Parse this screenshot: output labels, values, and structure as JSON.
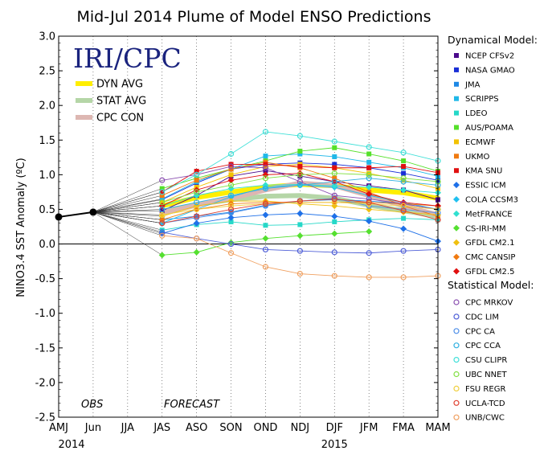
{
  "chart_data": {
    "type": "line",
    "title": "Mid-Jul 2014 Plume of Model ENSO Predictions",
    "logo": "IRI/CPC",
    "ylabel": "NINO3.4 SST Anomaly (ºC)",
    "ylim": [
      -2.5,
      3.0
    ],
    "yticks": [
      "3.0",
      "2.5",
      "2.0",
      "1.5",
      "1.0",
      "0.5",
      "0.0",
      "-0.5",
      "-1.0",
      "-1.5",
      "-2.0",
      "-2.5"
    ],
    "categories": [
      "AMJ",
      "Jun",
      "JJA",
      "JAS",
      "ASO",
      "SON",
      "OND",
      "NDJ",
      "DJF",
      "JFM",
      "FMA",
      "MAM"
    ],
    "year_labels": [
      "2014",
      "2015"
    ],
    "obs_label": "OBS",
    "forecast_label": "FORECAST",
    "observed": {
      "x": [
        "AMJ",
        "Jun"
      ],
      "values": [
        0.39,
        0.46
      ],
      "color": "#000000"
    },
    "legend_dynamical_header": "Dynamical Model:",
    "legend_statistical_header": "Statistical Model:",
    "averages": [
      {
        "name": "DYN AVG",
        "color": "#ffee00",
        "values": [
          0.55,
          0.67,
          0.75,
          0.82,
          0.86,
          0.84,
          0.78,
          0.74,
          0.66
        ]
      },
      {
        "name": "STAT AVG",
        "color": "#b5d6a7",
        "values": [
          0.47,
          0.57,
          0.64,
          0.69,
          0.7,
          0.66,
          0.56,
          0.48,
          0.4
        ]
      },
      {
        "name": "CPC CON",
        "color": "#ddb7b2",
        "values": [
          0.45,
          0.56,
          0.66,
          0.78,
          0.88,
          0.84,
          0.7,
          0.55,
          0.42
        ]
      }
    ],
    "dynamical": [
      {
        "name": "NCEP CFSv2",
        "color": "#4b0a8c",
        "marker": "square",
        "values": [
          0.48,
          0.7,
          0.98,
          1.06,
          0.98,
          0.9,
          0.84,
          0.78,
          0.64
        ]
      },
      {
        "name": "NASA GMAO",
        "color": "#1a2fd6",
        "marker": "square",
        "values": [
          0.64,
          0.88,
          1.08,
          1.15,
          1.17,
          1.15,
          1.1,
          1.02,
          0.92
        ]
      },
      {
        "name": "JMA",
        "color": "#1e88e5",
        "marker": "square",
        "values": [
          0.35,
          0.4,
          0.46,
          0.56,
          0.62,
          0.64,
          0.62,
          0.58,
          0.5
        ]
      },
      {
        "name": "SCRIPPS",
        "color": "#20b8e8",
        "marker": "square",
        "values": [
          0.65,
          0.9,
          1.08,
          1.27,
          1.3,
          1.26,
          1.18,
          1.1,
          0.98
        ]
      },
      {
        "name": "LDEO",
        "color": "#26d8c8",
        "marker": "square",
        "values": [
          0.2,
          0.28,
          0.32,
          0.27,
          0.28,
          0.32,
          0.35,
          0.37,
          0.35
        ]
      },
      {
        "name": "AUS/POAMA",
        "color": "#55e02a",
        "marker": "square",
        "values": [
          0.8,
          0.95,
          1.08,
          1.2,
          1.34,
          1.39,
          1.3,
          1.2,
          1.05
        ]
      },
      {
        "name": "ECMWF",
        "color": "#f2c200",
        "marker": "square",
        "values": [
          0.6,
          0.82,
          1.0,
          1.12,
          1.15,
          1.1,
          1.02,
          0.92,
          0.8
        ]
      },
      {
        "name": "UKMO",
        "color": "#f07a10",
        "marker": "square",
        "values": [
          0.7,
          0.92,
          1.08,
          1.18,
          1.1,
          0.95,
          0.75,
          0.55,
          0.4
        ]
      },
      {
        "name": "KMA SNU",
        "color": "#e01010",
        "marker": "square",
        "values": [
          0.75,
          1.05,
          1.15,
          1.15,
          1.12,
          1.1,
          1.1,
          1.12,
          1.03
        ]
      },
      {
        "name": "ESSIC ICM",
        "color": "#1e70e8",
        "marker": "diamond",
        "values": [
          0.15,
          0.3,
          0.38,
          0.42,
          0.44,
          0.4,
          0.33,
          0.22,
          0.04
        ]
      },
      {
        "name": "COLA CCSM3",
        "color": "#20c0f0",
        "marker": "diamond",
        "values": [
          0.3,
          0.5,
          0.68,
          0.82,
          0.85,
          0.82,
          0.7,
          0.6,
          0.5
        ]
      },
      {
        "name": "MetFRANCE",
        "color": "#30e0d0",
        "marker": "diamond",
        "values": [
          0.55,
          0.7,
          0.8,
          0.85,
          0.86,
          0.84,
          0.82,
          0.78,
          0.74
        ]
      },
      {
        "name": "CS-IRI-MM",
        "color": "#55e030",
        "marker": "diamond",
        "values": [
          -0.16,
          -0.12,
          0.02,
          0.08,
          0.12,
          0.15,
          0.18,
          null,
          null
        ]
      },
      {
        "name": "GFDL CM2.1",
        "color": "#f0c010",
        "marker": "diamond",
        "values": [
          0.4,
          0.55,
          0.62,
          0.62,
          0.58,
          0.55,
          0.5,
          0.46,
          0.42
        ]
      },
      {
        "name": "CMC CANSIP",
        "color": "#f07a10",
        "marker": "diamond",
        "values": [
          0.35,
          0.5,
          0.58,
          0.6,
          0.6,
          0.6,
          0.6,
          0.58,
          0.55
        ]
      },
      {
        "name": "GFDL CM2.5",
        "color": "#e01010",
        "marker": "diamond",
        "values": [
          0.55,
          0.78,
          0.92,
          1.0,
          1.02,
          0.9,
          0.72,
          0.6,
          0.55
        ]
      }
    ],
    "statistical": [
      {
        "name": "CPC MRKOV",
        "color": "#8a4fb0",
        "marker": "circle",
        "values": [
          0.92,
          1.0,
          1.12,
          1.1,
          0.9,
          0.7,
          0.65,
          0.58,
          0.5
        ]
      },
      {
        "name": "CDC LIM",
        "color": "#5060d8",
        "marker": "circle",
        "values": [
          0.17,
          0.08,
          0.0,
          -0.08,
          -0.1,
          -0.12,
          -0.13,
          -0.1,
          -0.08
        ]
      },
      {
        "name": "CPC CA",
        "color": "#4f8fe8",
        "marker": "circle",
        "values": [
          0.3,
          0.38,
          0.45,
          0.55,
          0.62,
          0.66,
          0.55,
          0.5,
          0.45
        ]
      },
      {
        "name": "CPC CCA",
        "color": "#30b0e0",
        "marker": "circle",
        "values": [
          0.5,
          0.6,
          0.7,
          0.8,
          0.85,
          0.9,
          0.95,
          0.9,
          0.85
        ]
      },
      {
        "name": "CSU CLIPR",
        "color": "#40e0d8",
        "marker": "circle",
        "values": [
          0.75,
          1.0,
          1.3,
          1.62,
          1.56,
          1.48,
          1.4,
          1.32,
          1.2
        ]
      },
      {
        "name": "UBC NNET",
        "color": "#80e040",
        "marker": "circle",
        "values": [
          0.6,
          0.75,
          0.85,
          0.95,
          1.0,
          1.02,
          1.0,
          0.95,
          0.9
        ]
      },
      {
        "name": "FSU REGR",
        "color": "#f0d040",
        "marker": "circle",
        "values": [
          0.42,
          0.5,
          0.55,
          0.58,
          0.6,
          0.6,
          0.58,
          0.55,
          0.5
        ]
      },
      {
        "name": "UCLA-TCD",
        "color": "#e04030",
        "marker": "circle",
        "values": [
          0.3,
          0.4,
          0.5,
          0.58,
          0.62,
          0.65,
          0.6,
          0.48,
          0.35
        ]
      },
      {
        "name": "UNB/CWC",
        "color": "#f0a060",
        "marker": "circle",
        "values": [
          0.12,
          0.08,
          -0.13,
          -0.33,
          -0.43,
          -0.46,
          -0.48,
          -0.48,
          -0.46
        ]
      }
    ]
  }
}
